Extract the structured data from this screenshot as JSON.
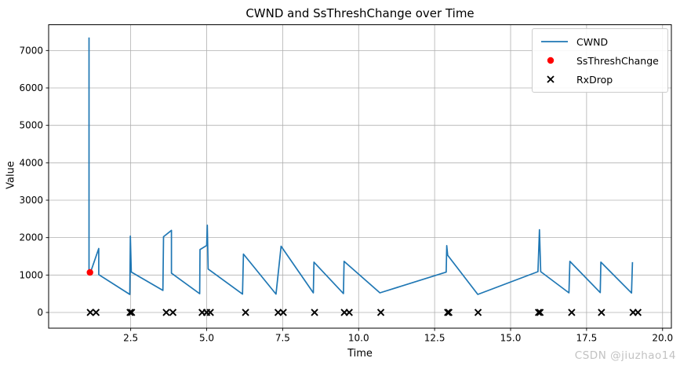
{
  "title": "CWND and SsThreshChange over Time",
  "watermark": "CSDN @jiuzhao14",
  "colors": {
    "cwnd_line": "#1f77b4",
    "ssthresh_marker": "#ff0000",
    "rxdrop_marker": "#000000",
    "grid": "#b0b0b0",
    "axes": "#000000",
    "watermark": "#c2c2c2"
  },
  "chart_data": {
    "type": "line",
    "title": "CWND and SsThreshChange over Time",
    "xlabel": "Time",
    "ylabel": "Value",
    "grid": true,
    "legend_position": "upper right",
    "xlim": [
      -0.2,
      20.29
    ],
    "ylim": [
      -420,
      7689
    ],
    "xticks": [
      2.5,
      5.0,
      7.5,
      10.0,
      12.5,
      15.0,
      17.5,
      20.0
    ],
    "xtick_labels": [
      "2.5",
      "5.0",
      "7.5",
      "10.0",
      "12.5",
      "15.0",
      "17.5",
      "20.0"
    ],
    "yticks": [
      0,
      1000,
      2000,
      3000,
      4000,
      5000,
      6000,
      7000
    ],
    "ytick_labels": [
      "0",
      "1000",
      "2000",
      "3000",
      "4000",
      "5000",
      "6000",
      "7000"
    ],
    "series": [
      {
        "name": "CWND",
        "type": "line",
        "color": "#1f77b4",
        "points": [
          [
            1.13,
            7346
          ],
          [
            1.13,
            1078
          ],
          [
            1.18,
            1078
          ],
          [
            1.45,
            1710
          ],
          [
            1.45,
            1010
          ],
          [
            2.47,
            483
          ],
          [
            2.49,
            2040
          ],
          [
            2.52,
            1080
          ],
          [
            3.56,
            590
          ],
          [
            3.58,
            2025
          ],
          [
            3.84,
            2195
          ],
          [
            3.84,
            1050
          ],
          [
            4.77,
            500
          ],
          [
            4.78,
            1680
          ],
          [
            5.0,
            1790
          ],
          [
            5.02,
            2330
          ],
          [
            5.05,
            1160
          ],
          [
            6.18,
            490
          ],
          [
            6.21,
            1560
          ],
          [
            7.28,
            490
          ],
          [
            7.45,
            1770
          ],
          [
            8.51,
            525
          ],
          [
            8.53,
            1345
          ],
          [
            9.5,
            505
          ],
          [
            9.52,
            1365
          ],
          [
            10.7,
            525
          ],
          [
            12.88,
            1078
          ],
          [
            12.9,
            1786
          ],
          [
            12.93,
            1530
          ],
          [
            13.92,
            483
          ],
          [
            15.9,
            1090
          ],
          [
            15.95,
            2212
          ],
          [
            15.99,
            1090
          ],
          [
            16.92,
            525
          ],
          [
            16.95,
            1365
          ],
          [
            17.95,
            530
          ],
          [
            17.97,
            1345
          ],
          [
            18.98,
            520
          ],
          [
            19.01,
            1345
          ]
        ]
      },
      {
        "name": "SsThreshChange",
        "type": "scatter",
        "marker": "circle",
        "color": "#ff0000",
        "points": [
          [
            1.16,
            1070
          ]
        ]
      },
      {
        "name": "RxDrop",
        "type": "scatter",
        "marker": "x",
        "color": "#000000",
        "points": [
          [
            1.17,
            0
          ],
          [
            1.36,
            0
          ],
          [
            2.48,
            0
          ],
          [
            2.53,
            0
          ],
          [
            3.67,
            0
          ],
          [
            3.89,
            0
          ],
          [
            4.85,
            0
          ],
          [
            5.0,
            0
          ],
          [
            5.12,
            0
          ],
          [
            6.28,
            0
          ],
          [
            7.35,
            0
          ],
          [
            7.52,
            0
          ],
          [
            8.55,
            0
          ],
          [
            9.53,
            0
          ],
          [
            9.69,
            0
          ],
          [
            10.73,
            0
          ],
          [
            12.93,
            0
          ],
          [
            12.97,
            0
          ],
          [
            13.93,
            0
          ],
          [
            15.92,
            0
          ],
          [
            15.97,
            0
          ],
          [
            17.01,
            0
          ],
          [
            17.99,
            0
          ],
          [
            19.03,
            0
          ],
          [
            19.19,
            0
          ]
        ]
      }
    ]
  }
}
